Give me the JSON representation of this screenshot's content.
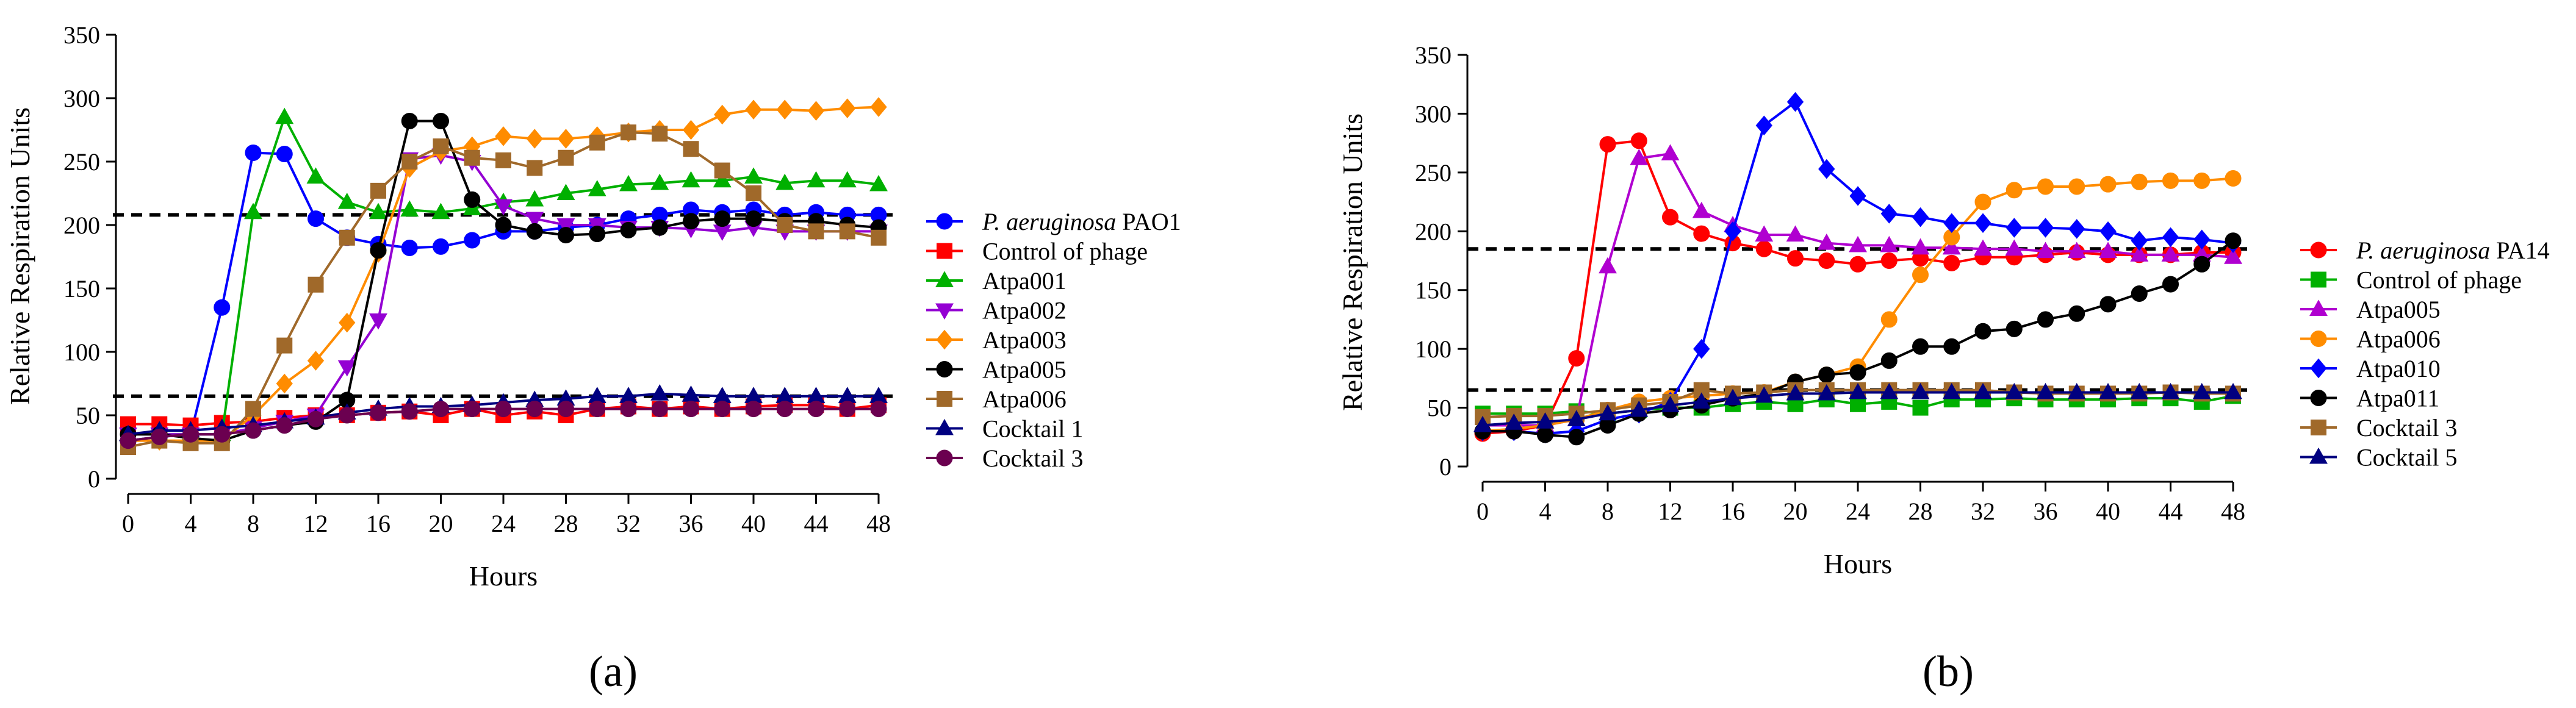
{
  "panel_labels": [
    "(a)",
    "(b)"
  ],
  "chart_data": [
    {
      "type": "line",
      "panel": "(a)",
      "title": "",
      "xlabel": "Hours",
      "ylabel": "Relative Respiration Units",
      "xlim": [
        0,
        48
      ],
      "ylim": [
        0,
        350
      ],
      "xticks": [
        0,
        4,
        8,
        12,
        16,
        20,
        24,
        28,
        32,
        36,
        40,
        44,
        48
      ],
      "yticks": [
        0,
        50,
        100,
        150,
        200,
        250,
        300,
        350
      ],
      "hlines": [
        208,
        65
      ],
      "legend_position": "right",
      "x": [
        0,
        2,
        4,
        6,
        8,
        10,
        12,
        14,
        16,
        18,
        20,
        22,
        24,
        26,
        28,
        30,
        32,
        34,
        36,
        38,
        40,
        42,
        44,
        46,
        48
      ],
      "series": [
        {
          "name": "P. aeruginosa PAO1",
          "italic_part": "P. aeruginosa",
          "suffix": " PAO1",
          "color": "#0000FF",
          "marker": "circle",
          "values": [
            30,
            33,
            35,
            135,
            257,
            256,
            205,
            190,
            185,
            182,
            183,
            188,
            195,
            195,
            198,
            200,
            205,
            208,
            212,
            210,
            212,
            208,
            210,
            208,
            208
          ]
        },
        {
          "name": "Control of phage",
          "color": "#FF0000",
          "marker": "square",
          "values": [
            43,
            43,
            42,
            44,
            45,
            48,
            50,
            50,
            52,
            53,
            50,
            55,
            50,
            53,
            50,
            55,
            57,
            55,
            57,
            55,
            57,
            58,
            58,
            55,
            58
          ]
        },
        {
          "name": "Atpa001",
          "color": "#00B000",
          "marker": "triangle-up",
          "values": [
            35,
            35,
            35,
            35,
            210,
            285,
            238,
            218,
            210,
            212,
            210,
            213,
            218,
            220,
            225,
            228,
            232,
            233,
            235,
            235,
            238,
            233,
            235,
            235,
            232
          ]
        },
        {
          "name": "Atpa002",
          "color": "#9400D3",
          "marker": "triangle-down",
          "values": [
            35,
            35,
            35,
            35,
            40,
            45,
            50,
            88,
            125,
            252,
            255,
            250,
            215,
            205,
            200,
            200,
            198,
            198,
            197,
            195,
            198,
            195,
            195,
            195,
            195
          ]
        },
        {
          "name": "Atpa003",
          "color": "#FF8C00",
          "marker": "diamond",
          "values": [
            30,
            30,
            30,
            30,
            50,
            75,
            93,
            123,
            178,
            245,
            258,
            262,
            270,
            268,
            268,
            270,
            273,
            275,
            275,
            287,
            291,
            291,
            290,
            292,
            293
          ]
        },
        {
          "name": "Atpa005",
          "color": "#000000",
          "marker": "circle",
          "values": [
            35,
            35,
            32,
            30,
            38,
            42,
            45,
            62,
            180,
            282,
            282,
            220,
            200,
            195,
            192,
            193,
            196,
            198,
            203,
            205,
            205,
            203,
            203,
            200,
            198
          ]
        },
        {
          "name": "Atpa006",
          "color": "#A0692A",
          "marker": "square",
          "values": [
            25,
            30,
            28,
            28,
            55,
            105,
            153,
            190,
            227,
            250,
            262,
            253,
            251,
            245,
            253,
            265,
            273,
            272,
            260,
            243,
            225,
            200,
            195,
            195,
            190
          ]
        },
        {
          "name": "Cocktail 1",
          "color": "#000080",
          "marker": "triangle-up",
          "values": [
            35,
            38,
            38,
            40,
            42,
            45,
            48,
            52,
            55,
            57,
            57,
            58,
            60,
            62,
            63,
            65,
            65,
            67,
            66,
            65,
            65,
            65,
            65,
            65,
            65
          ]
        },
        {
          "name": "Cocktail 3",
          "color": "#6B0050",
          "marker": "circle",
          "values": [
            30,
            33,
            35,
            35,
            38,
            42,
            47,
            50,
            52,
            53,
            55,
            55,
            55,
            55,
            55,
            55,
            55,
            55,
            55,
            55,
            55,
            55,
            55,
            55,
            55
          ]
        }
      ]
    },
    {
      "type": "line",
      "panel": "(b)",
      "title": "",
      "xlabel": "Hours",
      "ylabel": "Relative Respiration Units",
      "xlim": [
        0,
        48
      ],
      "ylim": [
        0,
        350
      ],
      "xticks": [
        0,
        4,
        8,
        12,
        16,
        20,
        24,
        28,
        32,
        36,
        40,
        44,
        48
      ],
      "yticks": [
        0,
        50,
        100,
        150,
        200,
        250,
        300,
        350
      ],
      "hlines": [
        185,
        65
      ],
      "legend_position": "right",
      "x": [
        0,
        2,
        4,
        6,
        8,
        10,
        12,
        14,
        16,
        18,
        20,
        22,
        24,
        26,
        28,
        30,
        32,
        34,
        36,
        38,
        40,
        42,
        44,
        46,
        48
      ],
      "series": [
        {
          "name": "P. aeruginosa PA14",
          "italic_part": "P. aeruginosa",
          "suffix": " PA14",
          "color": "#FF0000",
          "marker": "circle",
          "values": [
            28,
            30,
            35,
            92,
            274,
            277,
            212,
            198,
            190,
            185,
            177,
            175,
            172,
            175,
            177,
            173,
            178,
            178,
            180,
            182,
            180,
            180,
            180,
            182,
            182
          ]
        },
        {
          "name": "Control of phage",
          "color": "#00B000",
          "marker": "square",
          "values": [
            45,
            45,
            45,
            47,
            45,
            48,
            50,
            50,
            53,
            55,
            53,
            57,
            53,
            55,
            50,
            57,
            57,
            58,
            57,
            57,
            57,
            58,
            58,
            55,
            60
          ]
        },
        {
          "name": "Atpa005",
          "color": "#B000D0",
          "marker": "triangle-up",
          "values": [
            35,
            35,
            35,
            40,
            170,
            262,
            266,
            217,
            205,
            197,
            197,
            190,
            188,
            188,
            186,
            186,
            185,
            185,
            183,
            183,
            183,
            180,
            180,
            180,
            178
          ]
        },
        {
          "name": "Atpa006",
          "color": "#FF8C00",
          "marker": "circle",
          "values": [
            30,
            32,
            35,
            40,
            48,
            55,
            58,
            60,
            62,
            63,
            72,
            78,
            85,
            125,
            163,
            195,
            225,
            235,
            238,
            238,
            240,
            242,
            243,
            243,
            245
          ]
        },
        {
          "name": "Atpa010",
          "color": "#0000FF",
          "marker": "diamond",
          "values": [
            30,
            30,
            28,
            30,
            40,
            45,
            55,
            100,
            200,
            290,
            310,
            253,
            230,
            215,
            212,
            207,
            207,
            203,
            203,
            202,
            200,
            192,
            195,
            193,
            190
          ]
        },
        {
          "name": "Atpa011",
          "color": "#000000",
          "marker": "circle",
          "values": [
            30,
            30,
            27,
            25,
            35,
            45,
            48,
            52,
            58,
            62,
            72,
            78,
            80,
            90,
            102,
            102,
            115,
            117,
            125,
            130,
            138,
            147,
            155,
            172,
            192
          ]
        },
        {
          "name": "Cocktail 3",
          "color": "#A0692A",
          "marker": "square",
          "values": [
            42,
            43,
            43,
            45,
            48,
            52,
            55,
            65,
            62,
            63,
            65,
            65,
            65,
            65,
            65,
            65,
            65,
            63,
            62,
            62,
            62,
            62,
            63,
            62,
            62
          ]
        },
        {
          "name": "Cocktail 5",
          "color": "#000080",
          "marker": "triangle-up",
          "values": [
            35,
            37,
            38,
            40,
            45,
            48,
            52,
            55,
            58,
            60,
            62,
            62,
            63,
            63,
            63,
            63,
            63,
            63,
            63,
            63,
            63,
            63,
            63,
            63,
            63
          ]
        }
      ]
    }
  ]
}
